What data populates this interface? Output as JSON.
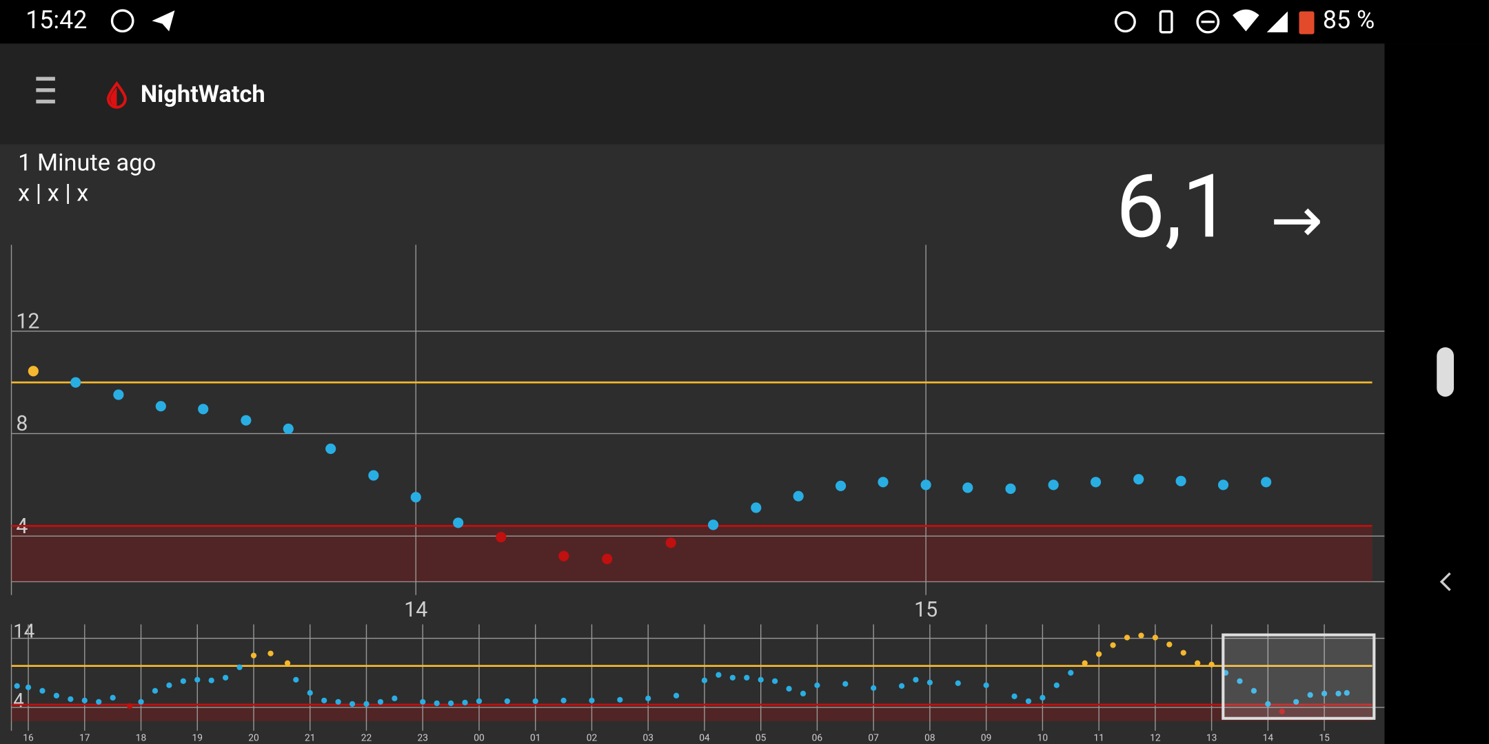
{
  "status_bar": {
    "time": "15:42",
    "battery": "85 %"
  },
  "app_bar": {
    "title": "NightWatch"
  },
  "reading": {
    "age": "1 Minute ago",
    "details": "x | x | x",
    "value": "6,1",
    "trend": "→"
  },
  "chart_data": [
    {
      "type": "scatter",
      "x": [
        13.25,
        13.333,
        13.417,
        13.5,
        13.583,
        13.667,
        13.75,
        13.833,
        13.917,
        14.0,
        14.083,
        14.167,
        14.29,
        14.375,
        14.5,
        14.583,
        14.667,
        14.75,
        14.833,
        14.916,
        15.0,
        15.082,
        15.166,
        15.25,
        15.333,
        15.417,
        15.5,
        15.583,
        15.667
      ],
      "values": [
        10.44,
        10.0,
        9.52,
        9.07,
        8.96,
        8.52,
        8.19,
        7.41,
        6.37,
        5.52,
        4.52,
        3.96,
        3.22,
        3.11,
        3.74,
        4.44,
        5.11,
        5.56,
        5.96,
        6.11,
        6.0,
        5.89,
        5.85,
        6.0,
        6.11,
        6.22,
        6.15,
        6.0,
        6.11
      ],
      "xlim": [
        13.207,
        15.875
      ],
      "ylim": [
        2.22,
        15.37
      ],
      "xticks": [
        14,
        15
      ],
      "yticks": [
        4,
        8,
        12
      ],
      "high": 10,
      "low": 4.4,
      "color": "#29aee4",
      "high_color": "#f5b82e",
      "low_color": "#c0100f",
      "grid": true
    },
    {
      "type": "scatter",
      "x": [
        15.8,
        16,
        16.25,
        16.5,
        16.75,
        17,
        17.25,
        17.5,
        17.8,
        18,
        18.25,
        18.5,
        18.75,
        19,
        19.25,
        19.5,
        19.75,
        20,
        20.3,
        20.6,
        20.75,
        21,
        21.25,
        21.5,
        21.75,
        22,
        22.25,
        22.5,
        23,
        23.25,
        23.5,
        23.75,
        24,
        24.5,
        25,
        25.5,
        26,
        26.5,
        27,
        27.5,
        28,
        28.25,
        28.5,
        28.75,
        29,
        29.25,
        29.5,
        29.75,
        30,
        30.5,
        31,
        31.5,
        31.75,
        32,
        32.5,
        33,
        33.5,
        33.75,
        34,
        34.25,
        34.5,
        34.75,
        35,
        35.25,
        35.5,
        35.75,
        36,
        36.25,
        36.5,
        36.75,
        37,
        37.25,
        37.5,
        37.75,
        38,
        38.25,
        38.5,
        38.75,
        39,
        39.25,
        39.4
      ],
      "values": [
        7.1,
        6.9,
        6.4,
        5.7,
        5.2,
        5.0,
        4.8,
        5.4,
        4.2,
        4.8,
        6.4,
        7.2,
        7.8,
        8.0,
        7.9,
        8.3,
        9.8,
        11.5,
        11.8,
        10.4,
        8.0,
        6.1,
        5.0,
        4.8,
        4.5,
        4.5,
        4.8,
        5.3,
        4.8,
        4.6,
        4.6,
        4.7,
        4.9,
        4.9,
        4.9,
        5.0,
        5.0,
        5.1,
        5.3,
        5.7,
        7.9,
        8.7,
        8.3,
        8.3,
        8.0,
        7.8,
        6.7,
        6.0,
        7.2,
        7.4,
        6.8,
        7.1,
        8.0,
        7.6,
        7.5,
        7.2,
        5.6,
        4.9,
        5.4,
        7.2,
        9.0,
        10.4,
        11.7,
        13.0,
        14.1,
        14.4,
        14.1,
        13.1,
        11.9,
        10.4,
        10.2,
        9.0,
        7.8,
        6.4,
        4.5,
        3.4,
        4.8,
        5.8,
        6.0,
        6.0,
        6.1
      ],
      "xlim": [
        15.7,
        39.85
      ],
      "ylim": [
        2,
        16
      ],
      "xticks": [
        16,
        17,
        18,
        19,
        20,
        21,
        22,
        23,
        {
          "value": 24,
          "label": "00"
        },
        {
          "value": 25,
          "label": "01"
        },
        {
          "value": 26,
          "label": "02"
        },
        {
          "value": 27,
          "label": "03"
        },
        {
          "value": 28,
          "label": "04"
        },
        {
          "value": 29,
          "label": "05"
        },
        {
          "value": 30,
          "label": "06"
        },
        {
          "value": 31,
          "label": "07"
        },
        {
          "value": 32,
          "label": "08"
        },
        {
          "value": 33,
          "label": "09"
        },
        {
          "value": 34,
          "label": "10"
        },
        {
          "value": 35,
          "label": "11"
        },
        {
          "value": 36,
          "label": "12"
        },
        {
          "value": 37,
          "label": "13"
        },
        {
          "value": 38,
          "label": "14"
        },
        {
          "value": 39,
          "label": "15"
        }
      ],
      "yticks": [
        4,
        14
      ],
      "high": 10,
      "low": 4.4,
      "color": "#29aee4",
      "high_color": "#f5b82e",
      "low_color": "#c0100f",
      "grid": true
    }
  ]
}
